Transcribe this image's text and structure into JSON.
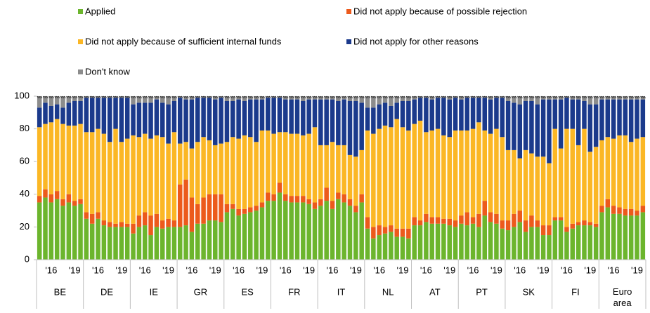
{
  "chart_data": {
    "type": "stacked_bar",
    "groups": [
      "BE",
      "DE",
      "IE",
      "GR",
      "ES",
      "FR",
      "IT",
      "NL",
      "AT",
      "PT",
      "SK",
      "FI",
      "Euro area"
    ],
    "categories": [
      null,
      null,
      "'16",
      null,
      null,
      null,
      "'19",
      null,
      null,
      null,
      "'16",
      null,
      null,
      null,
      "'19",
      null,
      null,
      null,
      "'16",
      null,
      null,
      null,
      "'19",
      null,
      null,
      null,
      "'16",
      null,
      null,
      null,
      "'19",
      null,
      null,
      null,
      "'16",
      null,
      null,
      null,
      "'19",
      null,
      null,
      null,
      "'16",
      null,
      null,
      null,
      "'19",
      null,
      null,
      null,
      "'16",
      null,
      null,
      null,
      "'19",
      null,
      null,
      null,
      "'16",
      null,
      null,
      null,
      "'19",
      null,
      null,
      null,
      "'16",
      null,
      null,
      null,
      "'19",
      null,
      null,
      null,
      "'16",
      null,
      null,
      null,
      "'19",
      null,
      null,
      null,
      "'16",
      null,
      null,
      null,
      "'19",
      null,
      null,
      null,
      "'16",
      null,
      null,
      null,
      "'19",
      null,
      null,
      null,
      "'16",
      null,
      null,
      null,
      "'19",
      null
    ],
    "series": [
      {
        "name": "Applied",
        "color": "#6cb52d",
        "values": [
          35,
          38,
          35,
          37,
          33,
          35,
          33,
          34,
          25,
          22,
          25,
          21,
          20,
          20,
          20,
          20,
          16,
          20,
          21,
          15,
          20,
          19,
          20,
          20,
          20,
          21,
          17,
          22,
          22,
          24,
          24,
          23,
          29,
          31,
          27,
          28,
          29,
          30,
          32,
          36,
          36,
          41,
          36,
          35,
          35,
          35,
          34,
          31,
          33,
          36,
          31,
          37,
          35,
          33,
          29,
          35,
          19,
          13,
          15,
          16,
          17,
          14,
          14,
          13,
          21,
          21,
          23,
          22,
          22,
          22,
          21,
          20,
          22,
          21,
          22,
          20,
          27,
          23,
          22,
          19,
          18,
          20,
          23,
          17,
          20,
          20,
          15,
          15,
          24,
          24,
          17,
          19,
          21,
          21,
          21,
          20,
          29,
          32,
          28,
          28,
          27,
          27,
          27,
          29
        ]
      },
      {
        "name": "Did not apply because of possible rejection",
        "color": "#ec5a1c",
        "values": [
          4,
          5,
          5,
          5,
          4,
          5,
          3,
          3,
          4,
          6,
          4,
          3,
          3,
          2,
          3,
          2,
          6,
          7,
          8,
          12,
          8,
          5,
          5,
          4,
          26,
          28,
          21,
          12,
          16,
          16,
          16,
          17,
          5,
          3,
          4,
          3,
          3,
          3,
          3,
          5,
          4,
          6,
          4,
          4,
          4,
          4,
          3,
          4,
          4,
          8,
          5,
          4,
          5,
          4,
          4,
          5,
          7,
          7,
          6,
          4,
          4,
          5,
          5,
          6,
          5,
          3,
          5,
          4,
          4,
          3,
          4,
          4,
          5,
          8,
          4,
          8,
          9,
          6,
          6,
          5,
          6,
          8,
          7,
          7,
          7,
          4,
          6,
          6,
          2,
          2,
          3,
          3,
          2,
          3,
          2,
          2,
          4,
          5,
          5,
          4,
          4,
          4,
          3,
          4
        ]
      },
      {
        "name": "Did not apply because of sufficient internal funds",
        "color": "#fbb725",
        "values": [
          42,
          40,
          44,
          44,
          46,
          42,
          46,
          46,
          49,
          50,
          51,
          53,
          49,
          58,
          49,
          52,
          54,
          48,
          48,
          47,
          48,
          51,
          46,
          54,
          25,
          23,
          30,
          38,
          37,
          33,
          30,
          31,
          38,
          41,
          43,
          45,
          43,
          39,
          44,
          38,
          37,
          31,
          38,
          38,
          38,
          37,
          40,
          46,
          33,
          26,
          36,
          29,
          30,
          27,
          30,
          27,
          53,
          57,
          59,
          62,
          60,
          67,
          62,
          60,
          57,
          61,
          50,
          53,
          54,
          51,
          50,
          55,
          52,
          50,
          54,
          56,
          43,
          48,
          52,
          51,
          43,
          39,
          32,
          43,
          38,
          39,
          42,
          38,
          54,
          42,
          60,
          58,
          47,
          56,
          43,
          47,
          40,
          38,
          41,
          44,
          45,
          41,
          44,
          42
        ]
      },
      {
        "name": "Did not apply for other reasons",
        "color": "#1b3a8c",
        "values": [
          12,
          13,
          10,
          9,
          10,
          14,
          15,
          14,
          21,
          21,
          19,
          22,
          27,
          19,
          27,
          25,
          19,
          21,
          19,
          22,
          22,
          21,
          24,
          19,
          28,
          26,
          30,
          27,
          24,
          26,
          28,
          28,
          25,
          22,
          24,
          21,
          23,
          26,
          19,
          20,
          22,
          21,
          20,
          21,
          21,
          21,
          21,
          17,
          28,
          28,
          26,
          27,
          28,
          33,
          34,
          29,
          14,
          16,
          15,
          14,
          13,
          10,
          16,
          18,
          15,
          14,
          21,
          19,
          19,
          23,
          23,
          20,
          19,
          20,
          19,
          15,
          20,
          21,
          19,
          24,
          30,
          29,
          33,
          30,
          32,
          32,
          35,
          39,
          18,
          30,
          19,
          18,
          28,
          17,
          29,
          26,
          25,
          23,
          24,
          22,
          22,
          26,
          24,
          23
        ]
      },
      {
        "name": "Don't know",
        "color": "#8c8c8c",
        "values": [
          7,
          4,
          6,
          5,
          7,
          4,
          3,
          3,
          1,
          1,
          1,
          1,
          1,
          1,
          1,
          1,
          5,
          4,
          4,
          4,
          2,
          4,
          5,
          3,
          1,
          2,
          2,
          1,
          1,
          1,
          2,
          1,
          3,
          3,
          2,
          3,
          2,
          2,
          2,
          1,
          1,
          1,
          2,
          2,
          2,
          3,
          2,
          2,
          2,
          2,
          2,
          3,
          2,
          3,
          3,
          4,
          7,
          7,
          5,
          4,
          6,
          4,
          3,
          3,
          2,
          1,
          1,
          2,
          1,
          1,
          2,
          1,
          2,
          1,
          1,
          1,
          1,
          2,
          1,
          1,
          3,
          4,
          5,
          3,
          3,
          5,
          2,
          2,
          2,
          2,
          1,
          2,
          2,
          3,
          5,
          5,
          2,
          2,
          2,
          2,
          2,
          2,
          2,
          2
        ]
      }
    ],
    "ylim": [
      0,
      100
    ],
    "yticks": [
      0,
      20,
      40,
      60,
      80,
      100
    ]
  }
}
